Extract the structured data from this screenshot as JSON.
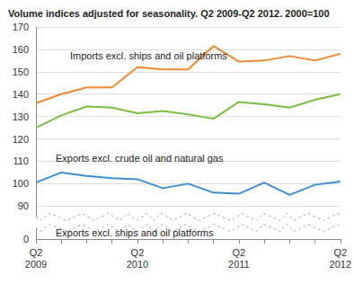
{
  "chart_data": {
    "type": "line",
    "title": "Volume indices adjusted for seasonality. Q2 2009-Q2 2012. 2000=100",
    "categories": [
      "Q2\n2009",
      null,
      null,
      null,
      "Q2\n2010",
      null,
      null,
      null,
      "Q2\n2011",
      null,
      null,
      null,
      "Q2\n2012"
    ],
    "series": [
      {
        "name": "Imports excl. ships and oil platforms",
        "color": "#f0892d",
        "values": [
          136,
          140,
          143,
          143,
          152,
          151,
          151,
          161.5,
          154.5,
          155,
          157,
          155,
          158
        ]
      },
      {
        "name": "Exports excl. crude oil and natural gas",
        "color": "#7dbb42",
        "values": [
          125,
          130.5,
          134.5,
          134,
          131.5,
          132.5,
          131,
          129,
          136.5,
          135.5,
          134,
          137.5,
          140
        ]
      },
      {
        "name": "Exports excl. ships and oil platforms",
        "color": "#3d8ed0",
        "values": [
          100.5,
          105,
          103.5,
          102.5,
          102,
          98,
          100,
          96,
          95.5,
          100.5,
          95,
          99.5,
          101
        ]
      }
    ],
    "ylim": [
      0,
      170
    ],
    "yticks": [
      0,
      90,
      100,
      110,
      120,
      130,
      140,
      150,
      160,
      170
    ],
    "grid": true
  }
}
